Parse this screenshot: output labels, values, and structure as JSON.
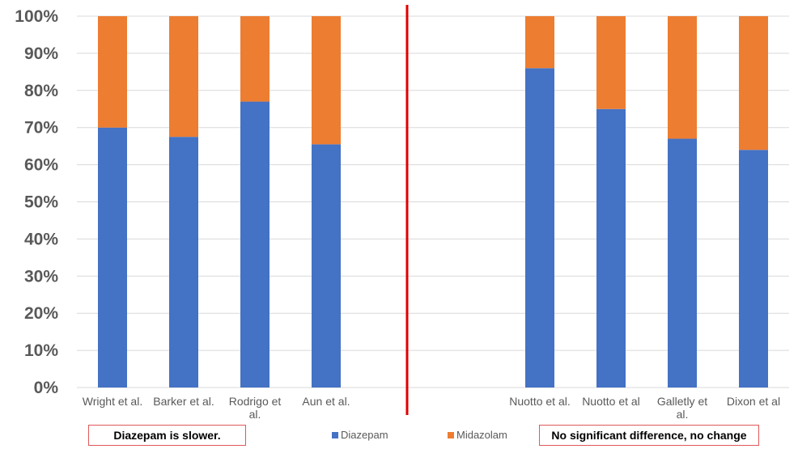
{
  "chart_data": {
    "type": "bar",
    "stacked": true,
    "percent_stacked": true,
    "categories": [
      [
        "Wright et al."
      ],
      [
        "Barker et al."
      ],
      [
        "Rodrigo et",
        "al."
      ],
      [
        "Aun et al."
      ],
      [
        ""
      ],
      [
        ""
      ],
      [
        "Nuotto et al."
      ],
      [
        "Nuotto et al"
      ],
      [
        "Galletly et",
        "al."
      ],
      [
        "Dixon et al"
      ]
    ],
    "series": [
      {
        "name": "Diazepam",
        "color": "#4472c4",
        "values": [
          70,
          67.5,
          77,
          65.5,
          null,
          null,
          86,
          75,
          67,
          64
        ]
      },
      {
        "name": "Midazolam",
        "color": "#ed7d31",
        "values": [
          30,
          32.5,
          23,
          34.5,
          null,
          null,
          14,
          25,
          33,
          36
        ]
      }
    ],
    "yticks": [
      "0%",
      "10%",
      "20%",
      "30%",
      "40%",
      "50%",
      "60%",
      "70%",
      "80%",
      "90%",
      "100%"
    ],
    "ylim": [
      0,
      100
    ],
    "grid": true,
    "legend": "bottom",
    "divider_color": "#e00000",
    "title": "",
    "xlabel": "",
    "ylabel": ""
  },
  "annotations": {
    "left_box": "Diazepam is slower.",
    "right_box": "No significant difference, no change"
  }
}
